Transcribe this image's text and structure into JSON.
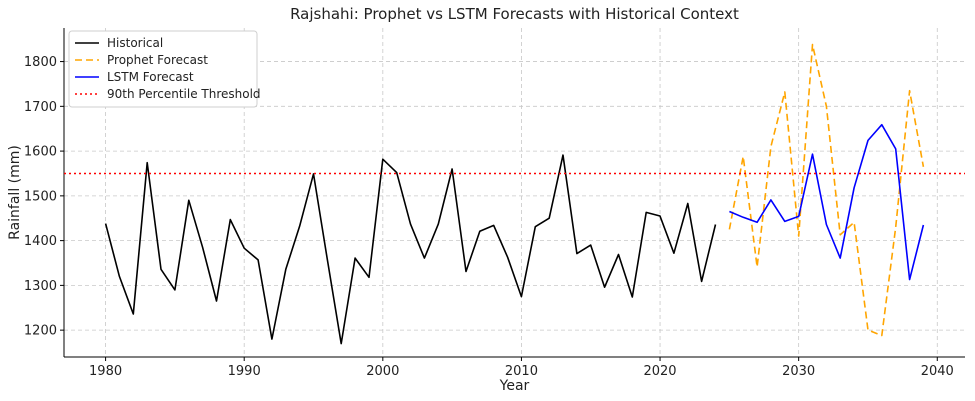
{
  "chart_data": {
    "type": "line",
    "title": "Rajshahi: Prophet vs LSTM Forecasts with Historical Context",
    "xlabel": "Year",
    "ylabel": "Rainfall (mm)",
    "xlim": [
      1977,
      2042
    ],
    "ylim": [
      1140,
      1875
    ],
    "xticks": [
      1980,
      1990,
      2000,
      2010,
      2020,
      2030,
      2040
    ],
    "yticks": [
      1200,
      1300,
      1400,
      1500,
      1600,
      1700,
      1800
    ],
    "grid": true,
    "legend_position": "top-left",
    "series": [
      {
        "name": "Historical",
        "color": "#000000",
        "style": "solid",
        "x": [
          1980,
          1981,
          1982,
          1983,
          1984,
          1985,
          1986,
          1987,
          1988,
          1989,
          1990,
          1991,
          1992,
          1993,
          1994,
          1995,
          1996,
          1997,
          1998,
          1999,
          2000,
          2001,
          2002,
          2003,
          2004,
          2005,
          2006,
          2007,
          2008,
          2009,
          2010,
          2011,
          2012,
          2013,
          2014,
          2015,
          2016,
          2017,
          2018,
          2019,
          2020,
          2021,
          2022,
          2023,
          2024
        ],
        "values": [
          1438,
          1320,
          1236,
          1574,
          1336,
          1290,
          1490,
          1385,
          1265,
          1447,
          1383,
          1357,
          1180,
          1336,
          1432,
          1549,
          1357,
          1170,
          1361,
          1318,
          1582,
          1552,
          1437,
          1361,
          1437,
          1560,
          1331,
          1421,
          1434,
          1363,
          1275,
          1431,
          1450,
          1591,
          1371,
          1390,
          1296,
          1369,
          1274,
          1463,
          1455,
          1372,
          1483,
          1309,
          1436
        ]
      },
      {
        "name": "Prophet Forecast",
        "color": "#FFA500",
        "style": "dashed",
        "x": [
          2025,
          2026,
          2027,
          2028,
          2029,
          2030,
          2031,
          2032,
          2033,
          2034,
          2035,
          2036,
          2037,
          2038,
          2039
        ],
        "values": [
          1425,
          1588,
          1341,
          1610,
          1732,
          1410,
          1838,
          1700,
          1413,
          1441,
          1200,
          1188,
          1430,
          1735,
          1565
        ]
      },
      {
        "name": "LSTM Forecast",
        "color": "#0000FF",
        "style": "solid",
        "x": [
          2025,
          2026,
          2027,
          2028,
          2029,
          2030,
          2031,
          2032,
          2033,
          2034,
          2035,
          2036,
          2037,
          2038,
          2039
        ],
        "values": [
          1465,
          1452,
          1441,
          1491,
          1443,
          1454,
          1593,
          1436,
          1361,
          1518,
          1624,
          1659,
          1605,
          1313,
          1435
        ]
      },
      {
        "name": "90th Percentile Threshold",
        "color": "#FF0000",
        "style": "dotted",
        "horizontal_value": 1550
      }
    ]
  }
}
